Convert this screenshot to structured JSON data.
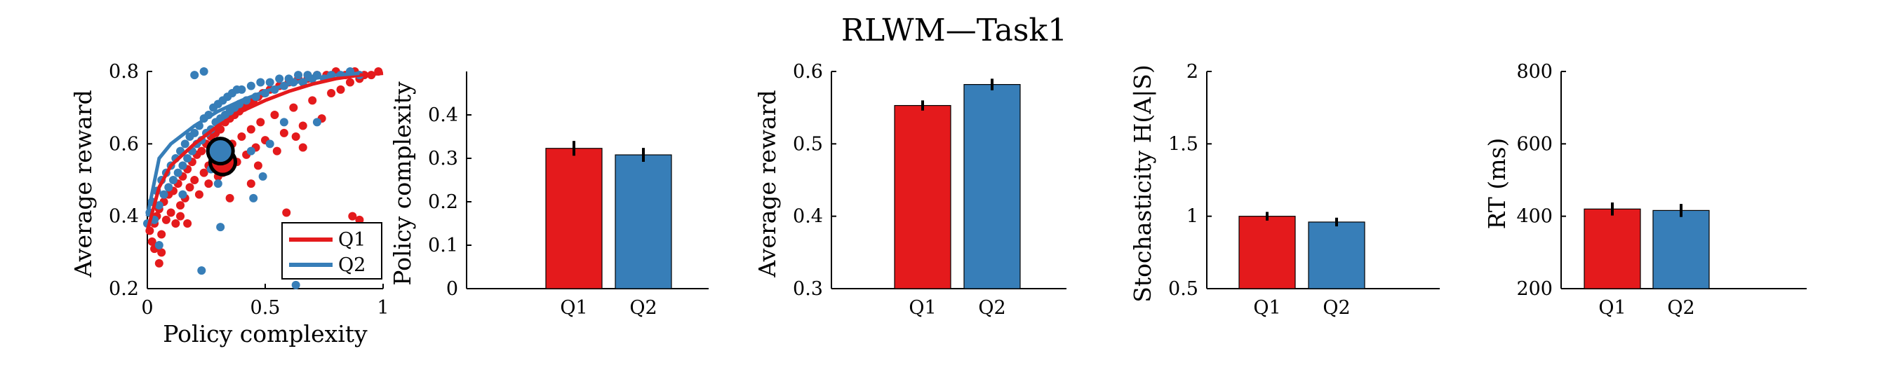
{
  "figure_title": "RLWM—Task1",
  "colors": {
    "Q1": "#e41a1c",
    "Q2": "#377eb8"
  },
  "chart_data": [
    {
      "type": "scatter",
      "xlabel": "Policy complexity",
      "ylabel": "Average reward",
      "xlim": [
        0,
        1
      ],
      "ylim": [
        0.2,
        0.8
      ],
      "xticks": [
        "0",
        "0.5",
        "1"
      ],
      "xtick_values": [
        0,
        0.5,
        1
      ],
      "yticks": [
        "0.2",
        "0.4",
        "0.6",
        "0.8"
      ],
      "ytick_values": [
        0.2,
        0.4,
        0.6,
        0.8
      ],
      "legend": {
        "position": "bottom-right",
        "entries": [
          "Q1",
          "Q2"
        ]
      },
      "series": [
        {
          "name": "Q1",
          "color": "#e41a1c",
          "points": [
            [
              0.01,
              0.36
            ],
            [
              0.02,
              0.33
            ],
            [
              0.03,
              0.38
            ],
            [
              0.04,
              0.4
            ],
            [
              0.05,
              0.27
            ],
            [
              0.05,
              0.42
            ],
            [
              0.06,
              0.35
            ],
            [
              0.07,
              0.44
            ],
            [
              0.08,
              0.39
            ],
            [
              0.09,
              0.46
            ],
            [
              0.1,
              0.41
            ],
            [
              0.11,
              0.47
            ],
            [
              0.12,
              0.38
            ],
            [
              0.13,
              0.49
            ],
            [
              0.14,
              0.43
            ],
            [
              0.15,
              0.51
            ],
            [
              0.16,
              0.45
            ],
            [
              0.17,
              0.53
            ],
            [
              0.18,
              0.48
            ],
            [
              0.19,
              0.55
            ],
            [
              0.2,
              0.5
            ],
            [
              0.21,
              0.57
            ],
            [
              0.22,
              0.46
            ],
            [
              0.23,
              0.58
            ],
            [
              0.24,
              0.52
            ],
            [
              0.25,
              0.6
            ],
            [
              0.26,
              0.54
            ],
            [
              0.27,
              0.62
            ],
            [
              0.28,
              0.56
            ],
            [
              0.29,
              0.63
            ],
            [
              0.3,
              0.51
            ],
            [
              0.31,
              0.64
            ],
            [
              0.32,
              0.58
            ],
            [
              0.33,
              0.66
            ],
            [
              0.34,
              0.53
            ],
            [
              0.35,
              0.67
            ],
            [
              0.36,
              0.6
            ],
            [
              0.37,
              0.68
            ],
            [
              0.38,
              0.55
            ],
            [
              0.39,
              0.69
            ],
            [
              0.4,
              0.62
            ],
            [
              0.41,
              0.7
            ],
            [
              0.42,
              0.57
            ],
            [
              0.43,
              0.71
            ],
            [
              0.44,
              0.64
            ],
            [
              0.45,
              0.72
            ],
            [
              0.46,
              0.59
            ],
            [
              0.47,
              0.73
            ],
            [
              0.48,
              0.66
            ],
            [
              0.49,
              0.74
            ],
            [
              0.5,
              0.61
            ],
            [
              0.52,
              0.75
            ],
            [
              0.54,
              0.68
            ],
            [
              0.56,
              0.76
            ],
            [
              0.58,
              0.63
            ],
            [
              0.6,
              0.77
            ],
            [
              0.62,
              0.7
            ],
            [
              0.64,
              0.78
            ],
            [
              0.66,
              0.65
            ],
            [
              0.68,
              0.78
            ],
            [
              0.7,
              0.72
            ],
            [
              0.72,
              0.79
            ],
            [
              0.74,
              0.67
            ],
            [
              0.76,
              0.79
            ],
            [
              0.78,
              0.74
            ],
            [
              0.8,
              0.8
            ],
            [
              0.82,
              0.75
            ],
            [
              0.84,
              0.79
            ],
            [
              0.86,
              0.77
            ],
            [
              0.88,
              0.8
            ],
            [
              0.9,
              0.78
            ],
            [
              0.92,
              0.79
            ],
            [
              0.95,
              0.79
            ],
            [
              0.98,
              0.8
            ],
            [
              0.59,
              0.41
            ],
            [
              0.6,
              0.37
            ],
            [
              0.87,
              0.4
            ],
            [
              0.9,
              0.39
            ],
            [
              0.06,
              0.3
            ],
            [
              0.03,
              0.31
            ],
            [
              0.14,
              0.4
            ],
            [
              0.17,
              0.38
            ],
            [
              0.26,
              0.49
            ],
            [
              0.32,
              0.52
            ],
            [
              0.44,
              0.49
            ],
            [
              0.47,
              0.54
            ],
            [
              0.55,
              0.58
            ],
            [
              0.63,
              0.62
            ],
            [
              0.66,
              0.59
            ],
            [
              0.35,
              0.45
            ]
          ]
        },
        {
          "name": "Q2",
          "color": "#377eb8",
          "points": [
            [
              0.0,
              0.38
            ],
            [
              0.01,
              0.41
            ],
            [
              0.02,
              0.44
            ],
            [
              0.03,
              0.39
            ],
            [
              0.04,
              0.47
            ],
            [
              0.05,
              0.43
            ],
            [
              0.06,
              0.5
            ],
            [
              0.07,
              0.46
            ],
            [
              0.08,
              0.52
            ],
            [
              0.09,
              0.48
            ],
            [
              0.1,
              0.54
            ],
            [
              0.11,
              0.5
            ],
            [
              0.12,
              0.56
            ],
            [
              0.13,
              0.52
            ],
            [
              0.14,
              0.58
            ],
            [
              0.15,
              0.54
            ],
            [
              0.16,
              0.6
            ],
            [
              0.17,
              0.56
            ],
            [
              0.18,
              0.62
            ],
            [
              0.19,
              0.58
            ],
            [
              0.2,
              0.63
            ],
            [
              0.21,
              0.6
            ],
            [
              0.22,
              0.65
            ],
            [
              0.23,
              0.61
            ],
            [
              0.24,
              0.67
            ],
            [
              0.25,
              0.63
            ],
            [
              0.26,
              0.68
            ],
            [
              0.27,
              0.64
            ],
            [
              0.28,
              0.7
            ],
            [
              0.29,
              0.66
            ],
            [
              0.3,
              0.71
            ],
            [
              0.31,
              0.67
            ],
            [
              0.32,
              0.72
            ],
            [
              0.33,
              0.68
            ],
            [
              0.34,
              0.73
            ],
            [
              0.35,
              0.69
            ],
            [
              0.36,
              0.74
            ],
            [
              0.37,
              0.7
            ],
            [
              0.38,
              0.75
            ],
            [
              0.39,
              0.71
            ],
            [
              0.4,
              0.75
            ],
            [
              0.42,
              0.72
            ],
            [
              0.44,
              0.76
            ],
            [
              0.46,
              0.73
            ],
            [
              0.48,
              0.77
            ],
            [
              0.5,
              0.74
            ],
            [
              0.52,
              0.77
            ],
            [
              0.54,
              0.75
            ],
            [
              0.56,
              0.78
            ],
            [
              0.58,
              0.76
            ],
            [
              0.6,
              0.78
            ],
            [
              0.62,
              0.77
            ],
            [
              0.64,
              0.79
            ],
            [
              0.66,
              0.77
            ],
            [
              0.68,
              0.79
            ],
            [
              0.7,
              0.78
            ],
            [
              0.72,
              0.79
            ],
            [
              0.75,
              0.78
            ],
            [
              0.78,
              0.79
            ],
            [
              0.82,
              0.79
            ],
            [
              0.86,
              0.8
            ],
            [
              0.9,
              0.79
            ],
            [
              0.2,
              0.79
            ],
            [
              0.24,
              0.8
            ],
            [
              0.45,
              0.45
            ],
            [
              0.63,
              0.21
            ],
            [
              0.31,
              0.37
            ],
            [
              0.23,
              0.25
            ],
            [
              0.05,
              0.32
            ],
            [
              0.3,
              0.49
            ],
            [
              0.36,
              0.54
            ],
            [
              0.44,
              0.58
            ],
            [
              0.52,
              0.6
            ],
            [
              0.49,
              0.51
            ],
            [
              0.58,
              0.66
            ],
            [
              0.72,
              0.66
            ],
            [
              0.15,
              0.46
            ],
            [
              0.27,
              0.53
            ]
          ]
        }
      ],
      "fit_lines": [
        {
          "name": "Q1",
          "color": "#e41a1c",
          "points": [
            [
              0.0,
              0.36
            ],
            [
              0.05,
              0.48
            ],
            [
              0.1,
              0.54
            ],
            [
              0.2,
              0.6
            ],
            [
              0.3,
              0.65
            ],
            [
              0.4,
              0.69
            ],
            [
              0.5,
              0.72
            ],
            [
              0.6,
              0.745
            ],
            [
              0.7,
              0.765
            ],
            [
              0.8,
              0.78
            ],
            [
              0.9,
              0.79
            ],
            [
              1.0,
              0.795
            ]
          ]
        },
        {
          "name": "Q2",
          "color": "#377eb8",
          "points": [
            [
              0.0,
              0.4
            ],
            [
              0.05,
              0.56
            ],
            [
              0.1,
              0.6
            ],
            [
              0.2,
              0.65
            ],
            [
              0.3,
              0.69
            ],
            [
              0.4,
              0.72
            ],
            [
              0.5,
              0.745
            ],
            [
              0.6,
              0.765
            ],
            [
              0.7,
              0.78
            ],
            [
              0.8,
              0.79
            ],
            [
              0.9,
              0.795
            ]
          ]
        }
      ],
      "means": [
        {
          "name": "Q1",
          "x": 0.32,
          "y": 0.55
        },
        {
          "name": "Q2",
          "x": 0.31,
          "y": 0.58
        }
      ]
    },
    {
      "type": "bar",
      "categories": [
        "Q1",
        "Q2"
      ],
      "values": [
        0.323,
        0.308
      ],
      "errors": [
        0.017,
        0.016
      ],
      "ylabel": "Policy complexity",
      "ylim": [
        0,
        0.5
      ],
      "yticks": [
        "0",
        "0.1",
        "0.2",
        "0.3",
        "0.4"
      ],
      "ytick_values": [
        0,
        0.1,
        0.2,
        0.3,
        0.4
      ]
    },
    {
      "type": "bar",
      "categories": [
        "Q1",
        "Q2"
      ],
      "values": [
        0.553,
        0.582
      ],
      "errors": [
        0.007,
        0.008
      ],
      "ylabel": "Average reward",
      "ylim": [
        0.3,
        0.6
      ],
      "yticks": [
        "0.3",
        "0.4",
        "0.5",
        "0.6"
      ],
      "ytick_values": [
        0.3,
        0.4,
        0.5,
        0.6
      ]
    },
    {
      "type": "bar",
      "categories": [
        "Q1",
        "Q2"
      ],
      "values": [
        1.0,
        0.96
      ],
      "errors": [
        0.03,
        0.03
      ],
      "ylabel": "Stochasticity H(A|S)",
      "ylim": [
        0.5,
        2
      ],
      "yticks": [
        "0.5",
        "1",
        "1.5",
        "2"
      ],
      "ytick_values": [
        0.5,
        1,
        1.5,
        2
      ]
    },
    {
      "type": "bar",
      "categories": [
        "Q1",
        "Q2"
      ],
      "values": [
        420,
        416
      ],
      "errors": [
        18,
        18
      ],
      "ylabel": "RT (ms)",
      "ylim": [
        200,
        800
      ],
      "yticks": [
        "200",
        "400",
        "600",
        "800"
      ],
      "ytick_values": [
        200,
        400,
        600,
        800
      ]
    }
  ]
}
